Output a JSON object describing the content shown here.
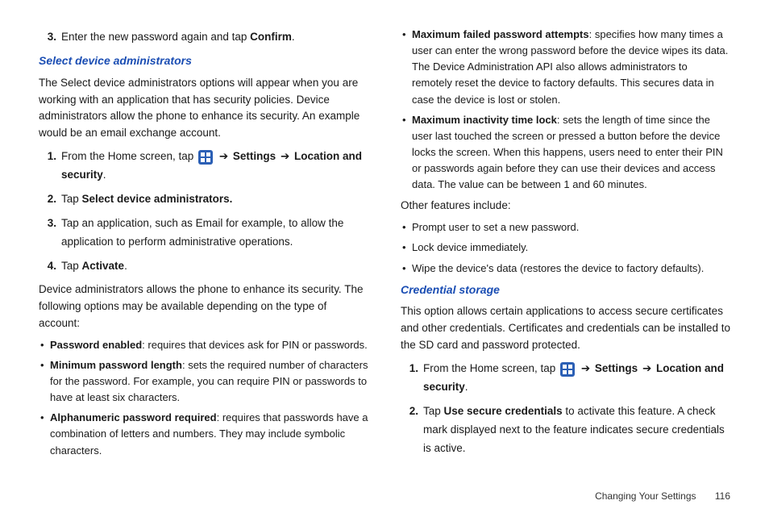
{
  "leftCol": {
    "step3": {
      "num": "3.",
      "pre": "Enter the new password again and tap ",
      "bold": "Confirm",
      "post": "."
    },
    "heading1": "Select device administrators",
    "para1": "The Select device administrators options will appear when you are working with an application that has security policies. Device administrators allow the phone to enhance its security. An example would be an email exchange account.",
    "steps": {
      "s1": {
        "num": "1.",
        "pre": "From the Home screen, tap ",
        "b1": "Settings",
        "b2": "Location and security"
      },
      "s2": {
        "num": "2.",
        "pre": "Tap ",
        "b": "Select device administrators."
      },
      "s3": {
        "num": "3.",
        "text": "Tap an application, such as Email for example, to allow the application to perform administrative operations."
      },
      "s4": {
        "num": "4.",
        "pre": "Tap ",
        "b": "Activate",
        "post": "."
      }
    },
    "para2": "Device administrators allows the phone to enhance its security. The following options may be available depending on the type of account:",
    "bullets": {
      "b1": {
        "b": "Password enabled",
        "t": ": requires that devices ask for PIN or passwords."
      },
      "b2": {
        "b": "Minimum password length",
        "t": ": sets the required number of characters for the password. For example, you can require PIN or passwords to have at least six characters."
      },
      "b3": {
        "b": "Alphanumeric password required",
        "t": ": requires that passwords have a combination of letters and numbers. They may include symbolic characters."
      }
    }
  },
  "rightCol": {
    "bullets1": {
      "b1": {
        "b": "Maximum failed password attempts",
        "t": ": specifies how many times a user can enter the wrong password before the device wipes its data. The Device Administration API also allows administrators to remotely reset the device to factory defaults. This secures data in case the device is lost or stolen."
      },
      "b2": {
        "b": "Maximum inactivity time lock",
        "t": ": sets the length of time since the user last touched the screen or pressed a button before the device locks the screen. When this happens, users need to enter their PIN or passwords again before they can use their devices and access data. The value can be between 1 and 60 minutes."
      }
    },
    "otherLabel": "Other features include:",
    "bullets2": {
      "b1": "Prompt user to set a new password.",
      "b2": "Lock device immediately.",
      "b3": "Wipe the device's data (restores the device to factory defaults)."
    },
    "heading2": "Credential storage",
    "para3": "This option allows certain applications to access secure certificates and other credentials. Certificates and credentials can be installed to the SD card and password protected.",
    "steps2": {
      "s1": {
        "num": "1.",
        "pre": "From the Home screen, tap ",
        "b1": "Settings",
        "b2": "Location and security"
      },
      "s2": {
        "num": "2.",
        "pre": "Tap ",
        "b": "Use secure credentials",
        "post": " to activate this feature. A check mark displayed next to the feature indicates secure credentials is active."
      }
    }
  },
  "footer": {
    "section": "Changing Your Settings",
    "page": "116"
  }
}
